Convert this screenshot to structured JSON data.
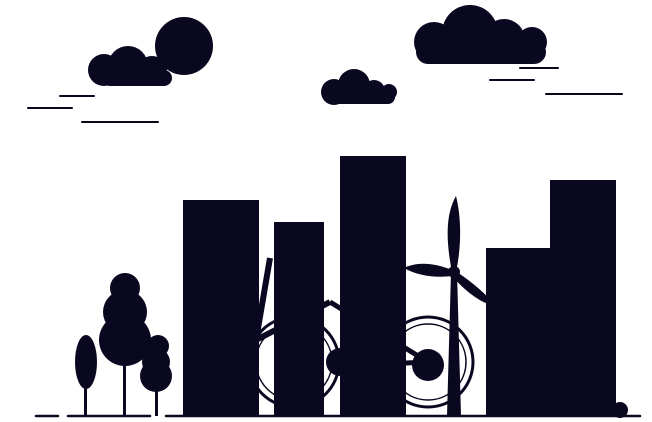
{
  "illustration": {
    "subject": "silhouette-cityscape",
    "colors": {
      "ink": "#0a0820",
      "background": "#ffffff"
    },
    "icons": [
      "cloud-icon",
      "tree-icon",
      "wind-turbine-icon",
      "bicycle-icon",
      "building-icon"
    ]
  }
}
